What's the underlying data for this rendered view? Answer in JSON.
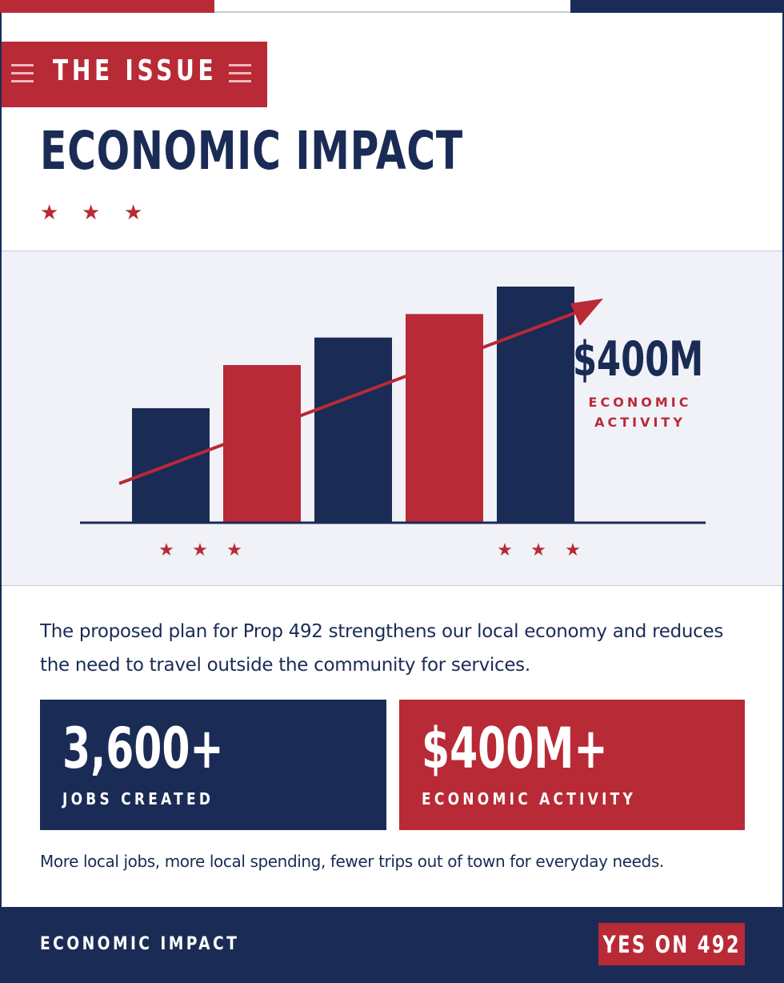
{
  "header": {
    "section_label": "THE ISSUE",
    "title": "ECONOMIC IMPACT"
  },
  "chart_data": {
    "type": "bar",
    "categories": [
      "",
      "",
      "",
      "",
      ""
    ],
    "series": [
      {
        "values": [
          29,
          40,
          47,
          53,
          60
        ]
      }
    ],
    "bar_colors": [
      "#1a2b55",
      "#b82a36",
      "#1a2b55",
      "#b82a36",
      "#1a2b55"
    ],
    "trend_arrow": true,
    "highlight_value": "$400M",
    "highlight_label": "ECONOMIC ACTIVITY",
    "grid": false
  },
  "intro": "The proposed plan for Prop 492 strengthens our local economy and reduces the need to travel outside the community for services.",
  "stats": [
    {
      "value": "3,600+",
      "label": "JOBS CREATED"
    },
    {
      "value": "$400M+",
      "label": "ECONOMIC ACTIVITY"
    }
  ],
  "footnote": "More local jobs, more local spending, fewer trips out of town for everyday needs.",
  "footer": {
    "label": "ECONOMIC IMPACT",
    "cta": "YES ON 492"
  },
  "colors": {
    "navy": "#1a2b55",
    "red": "#b82a36",
    "panel": "#f1f2f8"
  },
  "icons": [
    "menu-icon",
    "star-icon",
    "trend-arrow-icon"
  ]
}
